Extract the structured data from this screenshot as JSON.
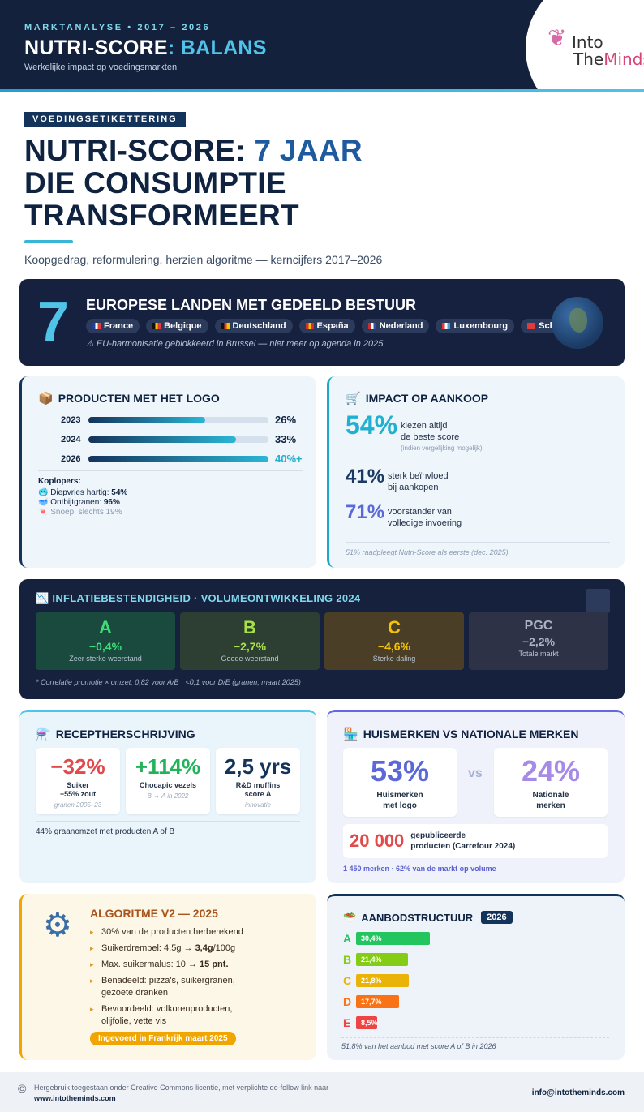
{
  "header": {
    "kicker": "MARKTANALYSE • 2017 – 2026",
    "title_main": "NUTRI-SCORE",
    "title_highlight": ": BALANS",
    "subtitle": "Werkelijke impact op voedingsmarkten",
    "logo_line1": "Into",
    "logo_the": "The",
    "logo_minds": "Minds"
  },
  "intro": {
    "tag": "VOEDINGSETIKETTERING",
    "h1_part1": "NUTRI-SCORE: ",
    "h1_highlight": "7 JAAR",
    "h1_line2": "DIE CONSUMPTIE",
    "h1_line3": "TRANSFORMEERT",
    "lead": "Koopgedrag, reformulering, herzien algoritme — kerncijfers 2017–2026"
  },
  "countries": {
    "number": "7",
    "title": "EUROPESE LANDEN MET GEDEELD BESTUUR",
    "items": [
      {
        "label": "France",
        "colors": [
          "#1f3f9f",
          "#ffffff",
          "#e03a3a"
        ]
      },
      {
        "label": "Belgique",
        "colors": [
          "#111111",
          "#f5c400",
          "#e03a3a"
        ]
      },
      {
        "label": "Deutschland",
        "colors": [
          "#111111",
          "#e03a3a",
          "#f5c400"
        ]
      },
      {
        "label": "España",
        "colors": [
          "#d0302f",
          "#f5c400",
          "#d0302f"
        ]
      },
      {
        "label": "Nederland",
        "colors": [
          "#c8302f",
          "#ffffff",
          "#2a4f9f"
        ]
      },
      {
        "label": "Luxembourg",
        "colors": [
          "#e03a3a",
          "#ffffff",
          "#3fa0d8"
        ]
      },
      {
        "label": "Schweiz",
        "colors": [
          "#e03a3a",
          "#e03a3a",
          "#e03a3a"
        ]
      }
    ],
    "note": "⚠ EU-harmonisatie geblokkeerd in Brussel — niet meer op agenda in 2025"
  },
  "products_logo": {
    "title": "PRODUCTEN MET HET LOGO",
    "bars": [
      {
        "year": "2023",
        "value_label": "26%",
        "value": 26
      },
      {
        "year": "2024",
        "value_label": "33%",
        "value": 33
      },
      {
        "year": "2026",
        "value_label": "40%+",
        "value": 40
      }
    ],
    "koplopers_title": "Koplopers:",
    "koplopers": [
      {
        "label": "Diepvries hartig: ",
        "value": "54%"
      },
      {
        "label": "Ontbijtgranen: ",
        "value": "96%"
      },
      {
        "label": "Snoep: slechts 19%",
        "value": ""
      }
    ]
  },
  "impact": {
    "title": "IMPACT OP AANKOOP",
    "stats": [
      {
        "num": "54%",
        "line1": "kiezen altijd",
        "line2": "de beste score",
        "small": "(indien vergelijking mogelijk)",
        "color": "#1fb0d2"
      },
      {
        "num": "41%",
        "line1": "sterk beïnvloed",
        "line2": "bij aankopen",
        "small": "",
        "color": "#1a3a63"
      },
      {
        "num": "71%",
        "line1": "voorstander van",
        "line2": "volledige invoering",
        "small": "",
        "color": "#5b68d8"
      }
    ],
    "note": "51% raadpleegt Nutri-Score als eerste (dec. 2025)"
  },
  "inflation": {
    "title": "INFLATIEBESTENDIGHEID · VOLUMEONTWIKKELING 2024",
    "grades": [
      {
        "letter": "A",
        "pct": "−0,4%",
        "desc": "Zeer sterke weerstand",
        "bg": "#1a4a3e",
        "fg": "#3fdc7a"
      },
      {
        "letter": "B",
        "pct": "−2,7%",
        "desc": "Goede weerstand",
        "bg": "#2d3f32",
        "fg": "#a8e04a"
      },
      {
        "letter": "C",
        "pct": "−4,6%",
        "desc": "Sterke daling",
        "bg": "#4a3f26",
        "fg": "#f5c400"
      },
      {
        "letter": "PGC",
        "pct": "−2,2%",
        "desc": "Totale markt",
        "bg": "#2e3246",
        "fg": "#aab3c4"
      }
    ],
    "note": "* Correlatie promotie × omzet: 0,82 voor A/B · <0,1 voor D/E (granen, maart 2025)"
  },
  "recipes": {
    "title": "RECEPTHERSCHRIJVING",
    "boxes": [
      {
        "num": "−32%",
        "l1": "Suiker",
        "l2": "−55% zout",
        "sub": "granen 2005–23",
        "color": "#e04a4a"
      },
      {
        "num": "+114%",
        "l1": "Chocapic vezels",
        "l2": "",
        "sub": "B → A in 2022",
        "color": "#22b35a"
      },
      {
        "num": "2,5 yrs",
        "l1": "R&D muffins",
        "l2": "score A",
        "sub": "innovatie",
        "color": "#14335a"
      }
    ],
    "bottom": "44% graanomzet met producten A of B"
  },
  "private_label": {
    "title": "HUISMERKEN VS NATIONALE MERKEN",
    "left_num": "53%",
    "left_l1": "Huismerken",
    "left_l2": "met logo",
    "vs": "vs",
    "right_num": "24%",
    "right_l1": "Nationale",
    "right_l2": "merken",
    "pub_num": "20 000",
    "pub_l1": "gepubliceerde",
    "pub_l2": "producten (Carrefour 2024)",
    "bottom": "1 450 merken · 62% van de markt op volume"
  },
  "algorithm": {
    "title": "ALGORITME V2 — 2025",
    "items": [
      {
        "text": "30% van de producten herberekend",
        "strong": ""
      },
      {
        "text": "Suikerdrempel: 4,5g → ",
        "strong": "3,4g",
        "after": "/100g"
      },
      {
        "text": "Max. suikermalus: 10 → ",
        "strong": "15 pnt.",
        "after": ""
      },
      {
        "text": "Benadeeld: pizza's, suikergranen, gezoete dranken",
        "strong": ""
      },
      {
        "text": "Bevoordeeld: volkorenproducten, olijfolie, vette vis",
        "strong": ""
      }
    ],
    "badge": "Ingevoerd in Frankrijk maart 2025"
  },
  "offer": {
    "title": "AANBODSTRUCTUUR",
    "year": "2026",
    "bars": [
      {
        "letter": "A",
        "label": "30,4%",
        "value": 30.4,
        "color": "#22c55e"
      },
      {
        "letter": "B",
        "label": "21,4%",
        "value": 21.4,
        "color": "#84cc16"
      },
      {
        "letter": "C",
        "label": "21,8%",
        "value": 21.8,
        "color": "#eab308"
      },
      {
        "letter": "D",
        "label": "17,7%",
        "value": 17.7,
        "color": "#f97316"
      },
      {
        "letter": "E",
        "label": "8,5%",
        "value": 8.5,
        "color": "#ef4444"
      }
    ],
    "note": "51,8% van het aanbod met score A of B in 2026"
  },
  "footer": {
    "cc": "©",
    "line1": "Hergebruik toegestaan onder Creative Commons-licentie, met verplichte do-follow link naar",
    "line2": "www.intotheminds.com",
    "email": "info@intotheminds.com"
  }
}
